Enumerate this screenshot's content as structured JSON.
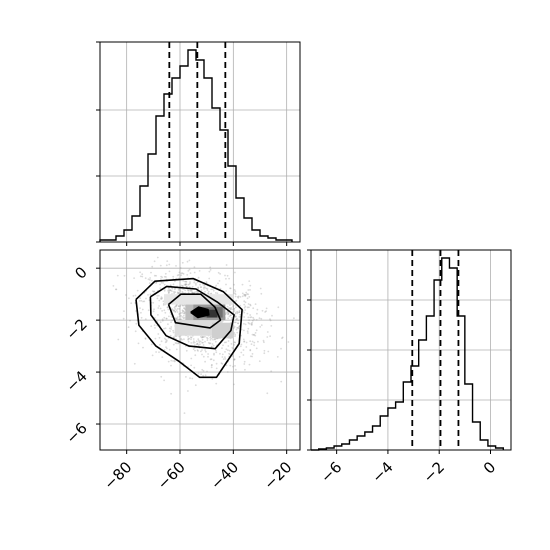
{
  "chart_data": [
    {
      "type": "histogram",
      "panel": "top-left",
      "xlim": [
        -90,
        -15
      ],
      "ylim": [
        0,
        1.0
      ],
      "grid": true,
      "bin_edges": [
        -90,
        -87,
        -84,
        -81,
        -78,
        -75,
        -72,
        -69,
        -66,
        -63,
        -60,
        -57,
        -54,
        -51,
        -48,
        -45,
        -42,
        -39,
        -36,
        -33,
        -30,
        -27,
        -24,
        -21,
        -18
      ],
      "counts": [
        0.01,
        0.01,
        0.03,
        0.06,
        0.13,
        0.28,
        0.44,
        0.63,
        0.74,
        0.82,
        0.88,
        0.96,
        0.91,
        0.82,
        0.67,
        0.56,
        0.38,
        0.22,
        0.12,
        0.06,
        0.03,
        0.02,
        0.01,
        0.01
      ],
      "quantile_lines": [
        -64,
        -53.5,
        -43
      ]
    },
    {
      "type": "scatter+contour",
      "panel": "bottom-left",
      "xlim": [
        -90,
        -15
      ],
      "ylim": [
        -7,
        0.7
      ],
      "grid": true,
      "xticks": [
        -80,
        -60,
        -40,
        -20
      ],
      "yticks": [
        0,
        -2,
        -4,
        -6
      ],
      "xtick_labels": [
        "−80",
        "−60",
        "−40",
        "−20"
      ],
      "ytick_labels": [
        "0",
        "−2",
        "−4",
        "−6"
      ],
      "center": [
        -52,
        -1.7
      ],
      "contour_levels": [
        [
          [
            -76.5,
            -1.2
          ],
          [
            -69.4,
            -0.5
          ],
          [
            -55.0,
            -0.4
          ],
          [
            -43.8,
            -0.9
          ],
          [
            -36.7,
            -1.6
          ],
          [
            -37.8,
            -2.9
          ],
          [
            -46.3,
            -4.2
          ],
          [
            -52.7,
            -4.2
          ],
          [
            -60.2,
            -3.6
          ],
          [
            -69.0,
            -3.0
          ],
          [
            -75.4,
            -2.2
          ],
          [
            -76.5,
            -1.2
          ]
        ],
        [
          [
            -71.1,
            -1.1
          ],
          [
            -65.0,
            -0.7
          ],
          [
            -54.0,
            -0.8
          ],
          [
            -46.1,
            -1.3
          ],
          [
            -39.7,
            -1.8
          ],
          [
            -40.9,
            -2.4
          ],
          [
            -46.8,
            -3.1
          ],
          [
            -56.6,
            -3.0
          ],
          [
            -65.2,
            -2.6
          ],
          [
            -70.9,
            -1.8
          ],
          [
            -71.1,
            -1.1
          ]
        ],
        [
          [
            -64.3,
            -1.4
          ],
          [
            -59.7,
            -1.0
          ],
          [
            -52.2,
            -1.0
          ],
          [
            -46.9,
            -1.5
          ],
          [
            -44.8,
            -2.0
          ],
          [
            -48.7,
            -2.3
          ],
          [
            -55.3,
            -2.2
          ],
          [
            -61.7,
            -2.1
          ],
          [
            -64.3,
            -1.4
          ]
        ],
        [
          [
            -56.0,
            -1.7
          ],
          [
            -53.0,
            -1.5
          ],
          [
            -49.5,
            -1.6
          ],
          [
            -49.2,
            -1.8
          ],
          [
            -53.3,
            -1.9
          ],
          [
            -56.0,
            -1.7
          ]
        ]
      ]
    },
    {
      "type": "histogram",
      "panel": "bottom-right",
      "xlim": [
        -7,
        0.8
      ],
      "ylim": [
        0,
        1.0
      ],
      "grid": true,
      "xticks": [
        -6,
        -4,
        -2,
        0
      ],
      "xtick_labels": [
        "−6",
        "−4",
        "−2",
        "0"
      ],
      "bin_edges": [
        -7.0,
        -6.7,
        -6.4,
        -6.1,
        -5.8,
        -5.5,
        -5.2,
        -4.9,
        -4.6,
        -4.3,
        -4.0,
        -3.7,
        -3.4,
        -3.1,
        -2.8,
        -2.5,
        -2.2,
        -1.9,
        -1.6,
        -1.3,
        -1.0,
        -0.7,
        -0.4,
        -0.1,
        0.2,
        0.5
      ],
      "counts": [
        0.0,
        0.005,
        0.01,
        0.02,
        0.03,
        0.05,
        0.07,
        0.09,
        0.12,
        0.17,
        0.21,
        0.24,
        0.34,
        0.42,
        0.55,
        0.67,
        0.85,
        0.96,
        0.91,
        0.67,
        0.33,
        0.14,
        0.05,
        0.02,
        0.01
      ],
      "quantile_lines": [
        -3.05,
        -1.95,
        -1.25
      ]
    }
  ]
}
